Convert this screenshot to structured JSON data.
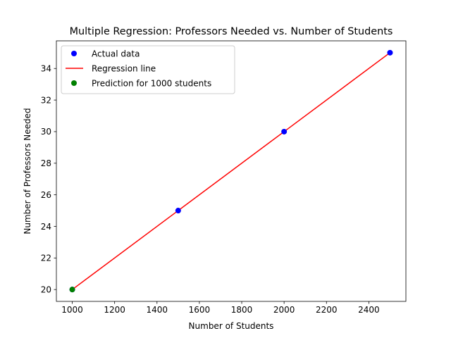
{
  "chart_data": {
    "type": "scatter",
    "title": "Multiple Regression: Professors Needed vs. Number of Students",
    "xlabel": "Number of Students",
    "ylabel": "Number of Professors Needed",
    "xlim": [
      925,
      2575
    ],
    "ylim": [
      19.25,
      35.75
    ],
    "x_ticks": [
      1000,
      1200,
      1400,
      1600,
      1800,
      2000,
      2200,
      2400
    ],
    "y_ticks": [
      20,
      22,
      24,
      26,
      28,
      30,
      32,
      34
    ],
    "grid": false,
    "legend_position": "upper-left",
    "series": [
      {
        "name": "Actual data",
        "kind": "scatter",
        "color": "#0000ff",
        "x": [
          1000,
          1500,
          2000,
          2500
        ],
        "y": [
          20,
          25,
          30,
          35
        ]
      },
      {
        "name": "Regression line",
        "kind": "line",
        "color": "#ff0000",
        "x": [
          1000,
          1500,
          2000,
          2500
        ],
        "y": [
          20,
          25,
          30,
          35
        ]
      },
      {
        "name": "Prediction for 1000 students",
        "kind": "scatter",
        "color": "#008000",
        "x": [
          1000
        ],
        "y": [
          20
        ]
      }
    ]
  }
}
